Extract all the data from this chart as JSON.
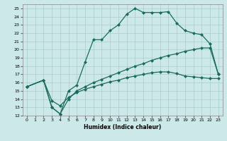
{
  "xlabel": "Humidex (Indice chaleur)",
  "bg_color": "#cce8e8",
  "grid_color": "#aacccc",
  "line_color": "#1a6b5e",
  "xlim": [
    -0.5,
    23.5
  ],
  "ylim": [
    12,
    25.5
  ],
  "xticks": [
    0,
    1,
    2,
    3,
    4,
    5,
    6,
    7,
    8,
    9,
    10,
    11,
    12,
    13,
    14,
    15,
    16,
    17,
    18,
    19,
    20,
    21,
    22,
    23
  ],
  "yticks": [
    12,
    13,
    14,
    15,
    16,
    17,
    18,
    19,
    20,
    21,
    22,
    23,
    24,
    25
  ],
  "line1_x": [
    0,
    2,
    3,
    4,
    5,
    6,
    7,
    8,
    9,
    10,
    11,
    12,
    13,
    14,
    15,
    16,
    17,
    18,
    19,
    20,
    21,
    22,
    23
  ],
  "line1_y": [
    15.5,
    16.3,
    13.0,
    12.2,
    15.0,
    15.7,
    18.5,
    21.2,
    21.2,
    22.3,
    23.0,
    24.3,
    25.0,
    24.5,
    24.5,
    24.5,
    24.6,
    23.2,
    22.3,
    22.0,
    21.8,
    20.7,
    17.0
  ],
  "line2_x": [
    0,
    2,
    3,
    4,
    5,
    6,
    7,
    8,
    9,
    10,
    11,
    12,
    13,
    14,
    15,
    16,
    17,
    18,
    19,
    20,
    21,
    22,
    23
  ],
  "line2_y": [
    15.5,
    16.3,
    13.8,
    13.2,
    14.2,
    14.8,
    15.2,
    15.5,
    15.8,
    16.1,
    16.3,
    16.6,
    16.8,
    17.0,
    17.2,
    17.3,
    17.3,
    17.1,
    16.8,
    16.7,
    16.6,
    16.5,
    16.5
  ],
  "line3_x": [
    0,
    2,
    3,
    4,
    5,
    6,
    7,
    8,
    9,
    10,
    11,
    12,
    13,
    14,
    15,
    16,
    17,
    18,
    19,
    20,
    21,
    22,
    23
  ],
  "line3_y": [
    15.5,
    16.3,
    13.0,
    12.2,
    14.0,
    15.0,
    15.5,
    16.0,
    16.4,
    16.8,
    17.2,
    17.6,
    18.0,
    18.3,
    18.7,
    19.0,
    19.3,
    19.5,
    19.8,
    20.0,
    20.2,
    20.2,
    17.0
  ]
}
